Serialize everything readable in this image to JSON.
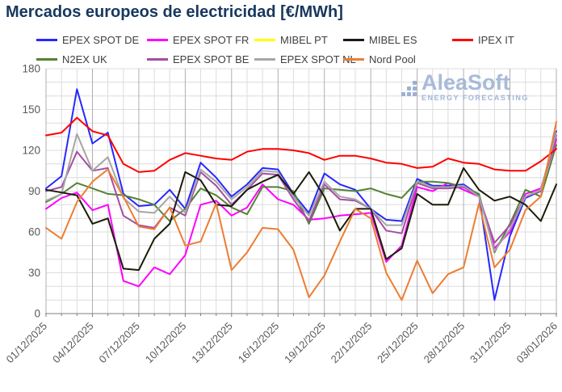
{
  "title": "Mercados europeos de electricidad [€/MWh]",
  "colors": {
    "title": "#17375E",
    "legend_text": "#404040",
    "tick_text": "#595959",
    "grid_minor": "#DCDCDC",
    "grid_major_day": "#AFAFAF",
    "axis_line": "#7F7F7F",
    "logo_text": "#9DB2D4",
    "logo_tagline": "#96AED4",
    "logo_dots": "#8FA6CE"
  },
  "logo": {
    "name": "AleaSoft",
    "tagline": "ENERGY FORECASTING"
  },
  "chart_data": {
    "type": "line",
    "title": "Mercados europeos de electricidad [€/MWh]",
    "ylim": [
      0,
      180
    ],
    "y_tick_step": 30,
    "y_minor_step": 10,
    "n_points": 34,
    "x_tick_every": 3,
    "tick_labels": [
      "01/12/2025",
      "04/12/2025",
      "07/12/2025",
      "10/12/2025",
      "13/12/2025",
      "16/12/2025",
      "19/12/2025",
      "22/12/2025",
      "25/12/2025",
      "28/12/2025",
      "31/12/2025",
      "03/01/2026"
    ],
    "legend_rows": [
      [
        0,
        1,
        2,
        3,
        4
      ],
      [
        5,
        6,
        7,
        8
      ]
    ],
    "series": [
      {
        "name": "EPEX SPOT DE",
        "color": "#2727FF",
        "values": [
          92,
          101,
          165,
          125,
          133,
          88,
          79,
          80,
          91,
          77,
          111,
          100,
          86,
          95,
          107,
          106,
          88,
          74,
          103,
          95,
          91,
          77,
          69,
          68,
          99,
          94,
          94,
          95,
          87,
          10,
          57,
          85,
          90,
          134
        ]
      },
      {
        "name": "EPEX SPOT FR",
        "color": "#FF00FF",
        "values": [
          77,
          85,
          89,
          76,
          80,
          24,
          20,
          34,
          29,
          43,
          80,
          83,
          72,
          78,
          95,
          84,
          80,
          69,
          70,
          72,
          73,
          74,
          38,
          50,
          93,
          90,
          96,
          91,
          86,
          48,
          60,
          88,
          92,
          128
        ]
      },
      {
        "name": "MIBEL PT",
        "color": "#FFFF00",
        "values": [
          91,
          89,
          87,
          66,
          70,
          33,
          32,
          55,
          66,
          104,
          98,
          80,
          79,
          91,
          97,
          102,
          88,
          104,
          86,
          61,
          77,
          77,
          40,
          48,
          88,
          80,
          80,
          107,
          91,
          83,
          86,
          80,
          68,
          95
        ]
      },
      {
        "name": "MIBEL ES",
        "color": "#1A1A1A",
        "values": [
          91,
          89,
          87,
          66,
          70,
          33,
          32,
          55,
          66,
          104,
          98,
          80,
          79,
          91,
          97,
          102,
          88,
          104,
          86,
          61,
          77,
          77,
          40,
          48,
          88,
          80,
          80,
          107,
          91,
          83,
          86,
          80,
          68,
          95
        ]
      },
      {
        "name": "IPEX IT",
        "color": "#FF0000",
        "values": [
          131,
          133,
          144,
          134,
          131,
          110,
          104,
          105,
          113,
          118,
          116,
          114,
          113,
          119,
          121,
          121,
          120,
          118,
          113,
          116,
          116,
          114,
          111,
          110,
          107,
          108,
          114,
          111,
          110,
          106,
          105,
          105,
          112,
          121
        ]
      },
      {
        "name": "N2EX UK",
        "color": "#548235",
        "values": [
          82,
          88,
          96,
          92,
          88,
          87,
          84,
          80,
          68,
          77,
          92,
          87,
          78,
          73,
          93,
          93,
          90,
          66,
          92,
          91,
          90,
          92,
          88,
          85,
          97,
          97,
          96,
          93,
          88,
          45,
          66,
          91,
          86,
          124
        ]
      },
      {
        "name": "EPEX SPOT BE",
        "color": "#A54DA5",
        "values": [
          90,
          93,
          119,
          105,
          107,
          72,
          65,
          63,
          78,
          72,
          104,
          94,
          80,
          91,
          103,
          102,
          84,
          68,
          95,
          84,
          83,
          77,
          61,
          59,
          96,
          92,
          92,
          93,
          86,
          52,
          65,
          86,
          90,
          131
        ]
      },
      {
        "name": "EPEX SPOT NL",
        "color": "#A6A6A6",
        "values": [
          83,
          88,
          132,
          105,
          115,
          85,
          75,
          74,
          86,
          74,
          106,
          97,
          84,
          93,
          105,
          104,
          86,
          72,
          97,
          86,
          84,
          77,
          65,
          65,
          97,
          93,
          93,
          94,
          86,
          46,
          62,
          86,
          91,
          133
        ]
      },
      {
        "name": "Nord Pool",
        "color": "#ED7D31",
        "values": [
          63,
          55,
          82,
          97,
          106,
          86,
          64,
          62,
          78,
          50,
          53,
          81,
          32,
          45,
          63,
          62,
          47,
          12,
          28,
          53,
          77,
          70,
          30,
          10,
          39,
          15,
          29,
          34,
          81,
          34,
          47,
          76,
          86,
          141
        ]
      }
    ]
  }
}
